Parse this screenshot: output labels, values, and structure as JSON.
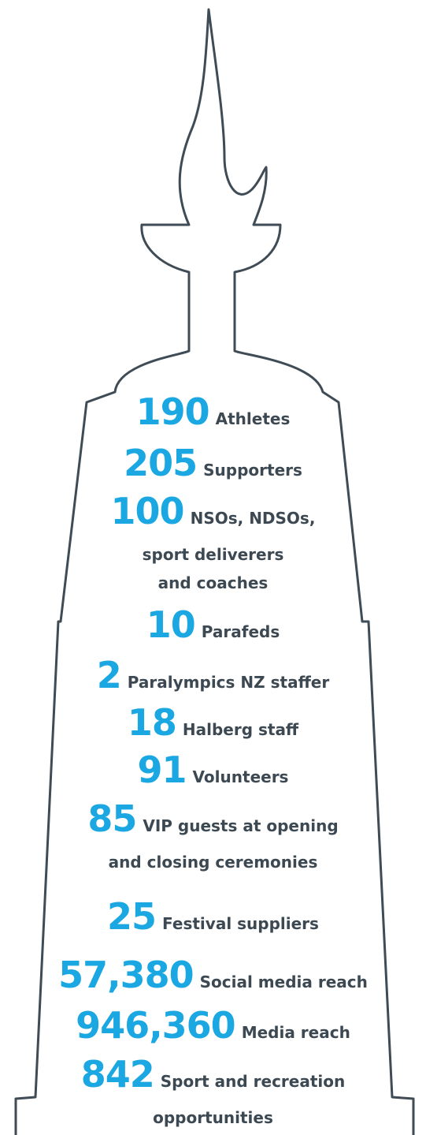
{
  "items": [
    {
      "number": "190",
      "label": [
        "Athletes"
      ]
    },
    {
      "number": "205",
      "label": [
        "Supporters"
      ]
    },
    {
      "number": "100",
      "label": [
        "NSOs, NDSOs,",
        "sport deliverers",
        "and coaches"
      ]
    },
    {
      "number": "10",
      "label": [
        "Parafeds"
      ]
    },
    {
      "number": "2",
      "label": [
        "Paralympics NZ staffer"
      ]
    },
    {
      "number": "18",
      "label": [
        "Halberg staff"
      ]
    },
    {
      "number": "91",
      "label": [
        "Volunteers"
      ]
    },
    {
      "number": "85",
      "label": [
        "VIP guests at opening",
        "and closing ceremonies"
      ]
    },
    {
      "number": "25",
      "label": [
        "Festival suppliers"
      ]
    },
    {
      "number": "57,380",
      "label": [
        "Social media reach"
      ]
    },
    {
      "number": "946,360",
      "label": [
        "Media reach"
      ]
    },
    {
      "number": "842",
      "label": [
        "Sport and recreation",
        "opportunities"
      ]
    }
  ]
}
